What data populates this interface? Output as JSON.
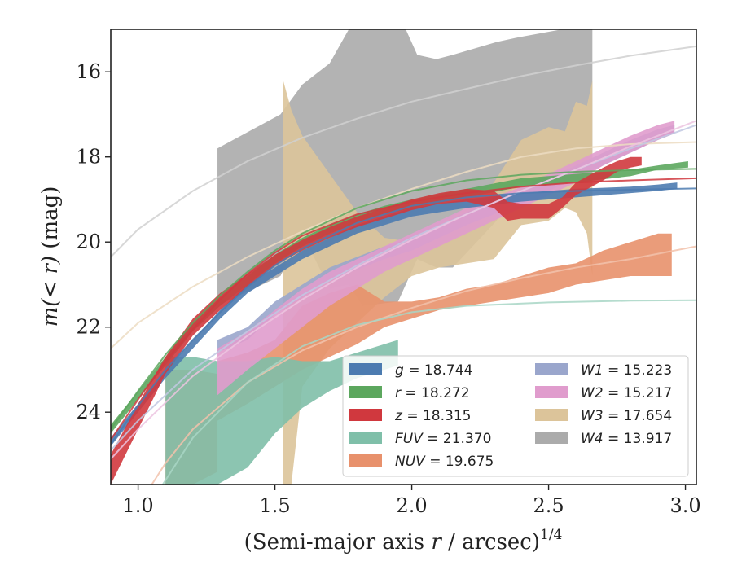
{
  "chart_data": {
    "type": "area",
    "xlabel_main": "(Semi-major axis ",
    "xlabel_var": "r",
    "xlabel_rest": " / arcsec)",
    "xlabel_sup": "1/4",
    "ylabel_main": "m(< r)",
    "ylabel_unit": " (mag)",
    "xlim": [
      0.9,
      3.04
    ],
    "ylim": [
      25.7,
      15.0
    ],
    "y_inverted": true,
    "xticks": [
      1.0,
      1.5,
      2.0,
      2.5,
      3.0
    ],
    "xtick_labels": [
      "1.0",
      "1.5",
      "2.0",
      "2.5",
      "3.0"
    ],
    "yticks": [
      16,
      18,
      20,
      22,
      24
    ],
    "ytick_labels": [
      "16",
      "18",
      "20",
      "22",
      "24"
    ],
    "grid": false,
    "legend_position": "lower-right",
    "series": [
      {
        "name": "W4",
        "legend_var": "W4",
        "legend_value": "13.917",
        "color": "#ababab",
        "band_x": [
          1.29,
          1.52,
          1.6,
          1.7,
          1.77,
          1.82,
          1.95,
          2.02,
          2.09,
          2.15,
          2.31,
          2.38,
          2.55,
          2.66
        ],
        "band_upper": [
          17.8,
          17.0,
          16.3,
          15.8,
          15.0,
          14.6,
          14.6,
          15.6,
          15.7,
          15.6,
          15.3,
          15.2,
          15.0,
          14.9
        ],
        "band_lower": [
          21.5,
          20.8,
          19.8,
          21.1,
          21.0,
          21.5,
          21.4,
          20.4,
          20.6,
          20.6,
          19.5,
          18.6,
          18.5,
          18.1
        ],
        "fit_x": [
          0.9,
          1.0,
          1.2,
          1.4,
          1.6,
          1.8,
          2.0,
          2.2,
          2.4,
          2.6,
          2.8,
          3.04
        ],
        "fit_y": [
          20.35,
          19.7,
          18.8,
          18.1,
          17.55,
          17.1,
          16.7,
          16.4,
          16.1,
          15.85,
          15.62,
          15.4
        ],
        "fit_color": "#d0d0d0"
      },
      {
        "name": "W3",
        "legend_var": "W3",
        "legend_value": "17.654",
        "color": "#dcc49a",
        "band_x": [
          1.53,
          1.56,
          1.6,
          1.7,
          1.8,
          1.9,
          2.0,
          2.1,
          2.2,
          2.3,
          2.4,
          2.5,
          2.56,
          2.6,
          2.64,
          2.66
        ],
        "band_upper": [
          16.2,
          16.9,
          17.5,
          18.4,
          19.3,
          19.9,
          20.0,
          19.6,
          19.2,
          18.6,
          17.6,
          17.3,
          17.4,
          16.7,
          16.8,
          16.2
        ],
        "band_lower": [
          25.7,
          25.7,
          23.4,
          22.5,
          21.9,
          21.3,
          20.8,
          20.6,
          20.5,
          20.4,
          19.6,
          19.5,
          19.2,
          19.3,
          19.8,
          20.8
        ],
        "fit_x": [
          0.9,
          1.0,
          1.2,
          1.4,
          1.6,
          1.8,
          2.0,
          2.2,
          2.4,
          2.6,
          2.8,
          3.04
        ],
        "fit_y": [
          22.5,
          21.9,
          21.05,
          20.35,
          19.75,
          19.2,
          18.75,
          18.35,
          18.0,
          17.8,
          17.7,
          17.65
        ],
        "fit_color": "#ecdcc2"
      },
      {
        "name": "NUV",
        "legend_var": "NUV",
        "legend_value": "19.675",
        "color": "#e8916c",
        "band_x": [
          1.1,
          1.2,
          1.29,
          1.29,
          1.4,
          1.5,
          1.6,
          1.7,
          1.8,
          1.9,
          2.0,
          2.1,
          2.2,
          2.3,
          2.4,
          2.5,
          2.6,
          2.7,
          2.8,
          2.9,
          2.95
        ],
        "band_upper": [
          23.0,
          23.0,
          23.1,
          22.8,
          22.6,
          22.3,
          21.5,
          21.2,
          21.0,
          21.4,
          21.4,
          21.3,
          21.1,
          21.0,
          20.8,
          20.6,
          20.5,
          20.2,
          20.0,
          19.8,
          19.8
        ],
        "band_lower": [
          25.7,
          25.7,
          25.4,
          24.2,
          23.8,
          23.4,
          23.0,
          22.7,
          22.4,
          22.0,
          21.8,
          21.6,
          21.5,
          21.4,
          21.3,
          21.2,
          21.0,
          20.9,
          20.8,
          20.8,
          20.8
        ],
        "fit_x": [
          0.9,
          1.0,
          1.1,
          1.2,
          1.4,
          1.6,
          1.8,
          2.0,
          2.2,
          2.4,
          2.6,
          2.8,
          3.04
        ],
        "fit_y": [
          27.6,
          26.2,
          25.2,
          24.4,
          23.3,
          22.55,
          22.0,
          21.55,
          21.15,
          20.85,
          20.6,
          20.4,
          20.1
        ],
        "fit_color": "#f2c2ac"
      },
      {
        "name": "FUV",
        "legend_var": "FUV",
        "legend_value": "21.370",
        "color": "#7fbfa9",
        "band_x": [
          1.1,
          1.2,
          1.29,
          1.4,
          1.5,
          1.6,
          1.7,
          1.8,
          1.9,
          1.95
        ],
        "band_upper": [
          22.7,
          22.7,
          22.8,
          22.8,
          22.7,
          22.8,
          22.8,
          22.6,
          22.4,
          22.3
        ],
        "band_lower": [
          25.7,
          25.7,
          25.7,
          25.3,
          24.5,
          23.9,
          23.5,
          23.2,
          23.0,
          22.9
        ],
        "fit_x": [
          0.9,
          1.0,
          1.1,
          1.2,
          1.4,
          1.6,
          1.8,
          2.0,
          2.2,
          2.5,
          2.8,
          3.04
        ],
        "fit_y": [
          28.0,
          26.6,
          25.6,
          24.6,
          23.3,
          22.45,
          21.95,
          21.65,
          21.5,
          21.42,
          21.38,
          21.37
        ],
        "fit_color": "#a8d6c6"
      },
      {
        "name": "W1",
        "legend_var": "W1",
        "legend_value": "15.223",
        "color": "#9aa6cc",
        "band_x": [
          1.29,
          1.4,
          1.5,
          1.6,
          1.7,
          1.8,
          1.9,
          2.0,
          2.1,
          2.2,
          2.3,
          2.4,
          2.5,
          2.6,
          2.7,
          2.8,
          2.9,
          2.96
        ],
        "band_upper": [
          22.3,
          22.0,
          21.4,
          21.0,
          20.6,
          20.35,
          20.1,
          19.9,
          19.6,
          19.3,
          19.05,
          18.8,
          18.5,
          18.2,
          17.9,
          17.6,
          17.35,
          17.25
        ],
        "band_lower": [
          22.6,
          22.3,
          21.7,
          21.3,
          20.9,
          20.65,
          20.4,
          20.2,
          19.9,
          19.6,
          19.35,
          19.1,
          18.8,
          18.5,
          18.2,
          17.9,
          17.6,
          17.45
        ],
        "fit_x": [
          0.9,
          1.0,
          1.2,
          1.4,
          1.6,
          1.8,
          2.0,
          2.2,
          2.4,
          2.6,
          2.8,
          3.04
        ],
        "fit_y": [
          24.9,
          24.2,
          23.0,
          22.1,
          21.25,
          20.55,
          19.9,
          19.35,
          18.8,
          18.3,
          17.8,
          17.25
        ],
        "fit_color": "#c1c8e2"
      },
      {
        "name": "W2",
        "legend_var": "W2",
        "legend_value": "15.217",
        "color": "#e09ccd",
        "band_x": [
          1.29,
          1.4,
          1.5,
          1.6,
          1.7,
          1.8,
          1.9,
          2.0,
          2.1,
          2.2,
          2.3,
          2.4,
          2.5,
          2.6,
          2.7,
          2.8,
          2.9,
          2.96
        ],
        "band_upper": [
          22.5,
          22.1,
          21.6,
          21.1,
          20.7,
          20.4,
          20.1,
          19.8,
          19.5,
          19.2,
          18.95,
          18.7,
          18.4,
          18.1,
          17.8,
          17.5,
          17.25,
          17.15
        ],
        "band_lower": [
          23.6,
          23.0,
          22.5,
          22.0,
          21.5,
          21.1,
          20.7,
          20.4,
          20.1,
          19.8,
          19.5,
          19.2,
          18.9,
          18.6,
          18.2,
          17.9,
          17.6,
          17.45
        ],
        "fit_x": [
          0.9,
          1.0,
          1.2,
          1.4,
          1.6,
          1.8,
          2.0,
          2.2,
          2.4,
          2.6,
          2.8,
          3.04
        ],
        "fit_y": [
          25.1,
          24.4,
          23.15,
          22.2,
          21.35,
          20.6,
          19.95,
          19.35,
          18.8,
          18.3,
          17.75,
          17.15
        ],
        "fit_color": "#ecc4e0"
      },
      {
        "name": "g",
        "legend_var": "g",
        "legend_value": "18.744",
        "color": "#4c7bb0",
        "band_x": [
          0.9,
          1.0,
          1.1,
          1.2,
          1.3,
          1.4,
          1.5,
          1.6,
          1.7,
          1.8,
          1.9,
          2.0,
          2.2,
          2.4,
          2.6,
          2.8,
          2.9,
          2.97
        ],
        "band_upper": [
          24.6,
          23.8,
          23.0,
          22.3,
          21.6,
          21.0,
          20.6,
          20.2,
          19.9,
          19.6,
          19.4,
          19.2,
          19.0,
          18.85,
          18.75,
          18.7,
          18.65,
          18.6
        ],
        "band_lower": [
          24.8,
          24.0,
          23.2,
          22.5,
          21.8,
          21.2,
          20.8,
          20.4,
          20.1,
          19.8,
          19.6,
          19.4,
          19.2,
          19.05,
          18.95,
          18.85,
          18.8,
          18.75
        ],
        "fit_x": [
          0.9,
          1.0,
          1.1,
          1.2,
          1.3,
          1.4,
          1.5,
          1.6,
          1.8,
          2.0,
          2.2,
          2.4,
          2.6,
          2.8,
          3.04
        ],
        "fit_y": [
          24.75,
          23.85,
          23.0,
          22.3,
          21.65,
          21.05,
          20.55,
          20.15,
          19.55,
          19.15,
          18.95,
          18.85,
          18.8,
          18.77,
          18.74
        ],
        "fit_color": "#4c7bb0"
      },
      {
        "name": "r",
        "legend_var": "r",
        "legend_value": "18.272",
        "color": "#5ca75e",
        "band_x": [
          0.9,
          1.0,
          1.1,
          1.2,
          1.3,
          1.4,
          1.5,
          1.6,
          1.7,
          1.8,
          1.9,
          2.0,
          2.2,
          2.4,
          2.6,
          2.8,
          2.9,
          3.01
        ],
        "band_upper": [
          24.3,
          23.5,
          22.7,
          21.9,
          21.3,
          20.8,
          20.3,
          19.9,
          19.6,
          19.35,
          19.15,
          19.0,
          18.75,
          18.5,
          18.4,
          18.3,
          18.2,
          18.1
        ],
        "band_lower": [
          24.5,
          23.7,
          22.9,
          22.1,
          21.5,
          21.0,
          20.5,
          20.1,
          19.8,
          19.55,
          19.35,
          19.2,
          18.95,
          18.7,
          18.6,
          18.45,
          18.3,
          18.25
        ],
        "fit_x": [
          0.9,
          1.0,
          1.1,
          1.2,
          1.3,
          1.4,
          1.5,
          1.6,
          1.8,
          2.0,
          2.2,
          2.4,
          2.6,
          2.8,
          3.04
        ],
        "fit_y": [
          24.4,
          23.5,
          22.65,
          21.9,
          21.25,
          20.7,
          20.2,
          19.8,
          19.2,
          18.8,
          18.55,
          18.42,
          18.35,
          18.31,
          18.28
        ],
        "fit_color": "#5ca75e"
      },
      {
        "name": "z",
        "legend_var": "z",
        "legend_value": "18.315",
        "color": "#d0383e",
        "band_x": [
          0.9,
          1.0,
          1.1,
          1.2,
          1.3,
          1.4,
          1.5,
          1.6,
          1.7,
          1.8,
          1.9,
          2.0,
          2.1,
          2.2,
          2.3,
          2.35,
          2.4,
          2.5,
          2.55,
          2.6,
          2.7,
          2.75,
          2.8,
          2.84
        ],
        "band_upper": [
          25.0,
          23.8,
          22.7,
          21.8,
          21.2,
          20.75,
          20.3,
          19.95,
          19.65,
          19.4,
          19.2,
          19.0,
          18.85,
          18.75,
          18.8,
          19.05,
          19.1,
          19.1,
          18.95,
          18.6,
          18.25,
          18.1,
          18.0,
          18.0
        ],
        "band_lower": [
          25.7,
          24.4,
          23.1,
          22.2,
          21.6,
          21.05,
          20.55,
          20.2,
          19.9,
          19.65,
          19.45,
          19.25,
          19.1,
          19.05,
          19.2,
          19.5,
          19.45,
          19.45,
          19.2,
          18.9,
          18.55,
          18.35,
          18.25,
          18.2
        ],
        "fit_x": [
          0.9,
          1.0,
          1.1,
          1.2,
          1.3,
          1.4,
          1.5,
          1.6,
          1.8,
          2.0,
          2.2,
          2.4,
          2.6,
          2.8,
          3.04
        ],
        "fit_y": [
          24.65,
          23.7,
          22.8,
          22.05,
          21.35,
          20.75,
          20.25,
          19.85,
          19.35,
          19.05,
          18.85,
          18.7,
          18.6,
          18.55,
          18.5
        ],
        "fit_color": "#d0383e"
      }
    ],
    "legend_columns": [
      [
        "g",
        "r",
        "z",
        "FUV",
        "NUV"
      ],
      [
        "W1",
        "W2",
        "W3",
        "W4"
      ]
    ]
  }
}
